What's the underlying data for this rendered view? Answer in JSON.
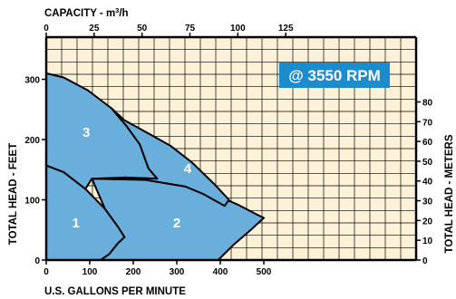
{
  "chart_data": {
    "type": "area",
    "title": "CAPACITY - m3/h",
    "title_parts": {
      "base": "CAPACITY - m",
      "sup": "3",
      "end": "/h"
    },
    "xlabel": "U.S. GALLONS PER MINUTE",
    "ylabel": "TOTAL HEAD - FEET",
    "y2label": "TOTAL HEAD - METERS",
    "annotation": "@ 3550 RPM",
    "xlim": [
      0,
      850
    ],
    "ylim": [
      0,
      370
    ],
    "x_ticks": [
      "0",
      "100",
      "200",
      "300",
      "400",
      "500"
    ],
    "x_tick_values": [
      0,
      100,
      200,
      300,
      400,
      500
    ],
    "y_ticks": [
      "0",
      "100",
      "200",
      "300"
    ],
    "y_tick_values": [
      0,
      100,
      200,
      300
    ],
    "top_ticks": [
      "0",
      "25",
      "50",
      "75",
      "100",
      "125"
    ],
    "top_tick_values": [
      0,
      25,
      50,
      75,
      100,
      125
    ],
    "right_ticks": [
      "0",
      "10",
      "20",
      "30",
      "40",
      "50",
      "60",
      "70",
      "80"
    ],
    "right_tick_values": [
      0,
      10,
      20,
      30,
      40,
      50,
      60,
      70,
      80
    ],
    "grid": true,
    "colors": {
      "background": "#fdf2d8",
      "grid": "#000000",
      "region_fill": "#6aaedc",
      "region_stroke": "#000000",
      "annotation_bg": "#1c8ccc",
      "annotation_text": "#ffffff",
      "region_label": "#ffffff"
    },
    "series": [
      {
        "name": "1",
        "label_at": [
          68,
          62
        ],
        "outline": [
          [
            0,
            0
          ],
          [
            0,
            157
          ],
          [
            40,
            146
          ],
          [
            90,
            118
          ],
          [
            135,
            85
          ],
          [
            165,
            55
          ],
          [
            180,
            38
          ],
          [
            165,
            28
          ],
          [
            145,
            10
          ],
          [
            125,
            0
          ]
        ]
      },
      {
        "name": "2",
        "label_at": [
          300,
          62
        ],
        "outline": [
          [
            125,
            0
          ],
          [
            145,
            10
          ],
          [
            165,
            28
          ],
          [
            180,
            38
          ],
          [
            165,
            55
          ],
          [
            135,
            85
          ],
          [
            105,
            135
          ],
          [
            230,
            133
          ],
          [
            320,
            122
          ],
          [
            390,
            108
          ],
          [
            440,
            92
          ],
          [
            480,
            77
          ],
          [
            500,
            70
          ],
          [
            470,
            50
          ],
          [
            430,
            25
          ],
          [
            395,
            0
          ]
        ]
      },
      {
        "name": "3",
        "label_at": [
          92,
          212
        ],
        "outline": [
          [
            0,
            157
          ],
          [
            0,
            310
          ],
          [
            40,
            303
          ],
          [
            95,
            282
          ],
          [
            150,
            252
          ],
          [
            185,
            222
          ],
          [
            215,
            192
          ],
          [
            235,
            152
          ],
          [
            255,
            135
          ],
          [
            180,
            137
          ],
          [
            105,
            135
          ],
          [
            90,
            118
          ],
          [
            40,
            146
          ]
        ]
      },
      {
        "name": "4",
        "label_at": [
          325,
          152
        ],
        "outline": [
          [
            255,
            135
          ],
          [
            235,
            152
          ],
          [
            215,
            192
          ],
          [
            185,
            222
          ],
          [
            150,
            252
          ],
          [
            180,
            232
          ],
          [
            230,
            212
          ],
          [
            285,
            190
          ],
          [
            335,
            162
          ],
          [
            385,
            127
          ],
          [
            420,
            100
          ],
          [
            410,
            90
          ],
          [
            360,
            110
          ],
          [
            320,
            122
          ],
          [
            230,
            133
          ],
          [
            180,
            137
          ]
        ]
      }
    ]
  }
}
